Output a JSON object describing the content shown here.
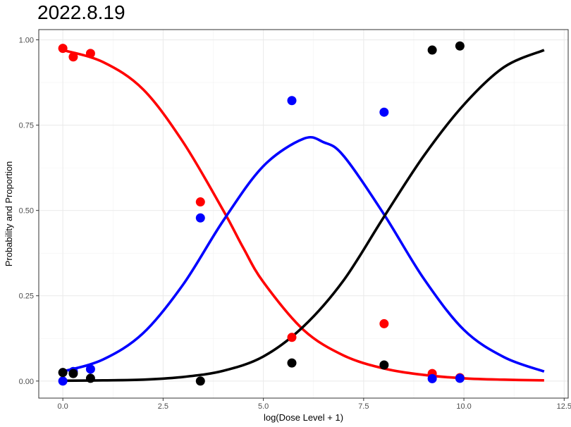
{
  "chart_data": {
    "type": "scatter",
    "title": "2022.8.19",
    "xlabel": "log(Dose Level + 1)",
    "ylabel": "Probability and Proportion",
    "xlim": [
      -0.6,
      12.6
    ],
    "ylim": [
      -0.05,
      1.03
    ],
    "x_ticks": [
      0.0,
      2.5,
      5.0,
      7.5,
      10.0,
      12.5
    ],
    "x_tick_labels": [
      "0.0",
      "2.5",
      "5.0",
      "7.5",
      "10.0",
      "12.5"
    ],
    "y_ticks": [
      0.0,
      0.25,
      0.5,
      0.75,
      1.0
    ],
    "y_tick_labels": [
      "0.00",
      "0.25",
      "0.50",
      "0.75",
      "1.00"
    ],
    "grid": true,
    "legend": "none",
    "series": [
      {
        "color": "#ff0000",
        "points": [
          {
            "x": 0.0,
            "y": 0.975
          },
          {
            "x": 0.26,
            "y": 0.95
          },
          {
            "x": 0.69,
            "y": 0.96
          },
          {
            "x": 3.43,
            "y": 0.525
          },
          {
            "x": 5.71,
            "y": 0.128
          },
          {
            "x": 8.01,
            "y": 0.168
          },
          {
            "x": 9.21,
            "y": 0.022
          },
          {
            "x": 9.9,
            "y": 0.01
          }
        ],
        "curve": [
          {
            "x": 0.0,
            "y": 0.97
          },
          {
            "x": 1.0,
            "y": 0.935
          },
          {
            "x": 2.0,
            "y": 0.855
          },
          {
            "x": 3.0,
            "y": 0.7
          },
          {
            "x": 4.0,
            "y": 0.5
          },
          {
            "x": 4.5,
            "y": 0.39
          },
          {
            "x": 5.0,
            "y": 0.29
          },
          {
            "x": 6.0,
            "y": 0.15
          },
          {
            "x": 7.0,
            "y": 0.075
          },
          {
            "x": 8.0,
            "y": 0.037
          },
          {
            "x": 9.0,
            "y": 0.018
          },
          {
            "x": 10.0,
            "y": 0.008
          },
          {
            "x": 11.0,
            "y": 0.004
          },
          {
            "x": 12.0,
            "y": 0.002
          }
        ]
      },
      {
        "color": "#0000ff",
        "points": [
          {
            "x": 0.0,
            "y": 0.0
          },
          {
            "x": 0.26,
            "y": 0.028
          },
          {
            "x": 0.69,
            "y": 0.035
          },
          {
            "x": 3.43,
            "y": 0.478
          },
          {
            "x": 5.71,
            "y": 0.822
          },
          {
            "x": 8.01,
            "y": 0.788
          },
          {
            "x": 9.21,
            "y": 0.007
          },
          {
            "x": 9.9,
            "y": 0.008
          }
        ],
        "curve": [
          {
            "x": 0.0,
            "y": 0.028
          },
          {
            "x": 1.0,
            "y": 0.063
          },
          {
            "x": 2.0,
            "y": 0.14
          },
          {
            "x": 3.0,
            "y": 0.283
          },
          {
            "x": 4.0,
            "y": 0.47
          },
          {
            "x": 5.0,
            "y": 0.63
          },
          {
            "x": 6.0,
            "y": 0.71
          },
          {
            "x": 6.5,
            "y": 0.7
          },
          {
            "x": 7.0,
            "y": 0.66
          },
          {
            "x": 8.0,
            "y": 0.49
          },
          {
            "x": 9.0,
            "y": 0.3
          },
          {
            "x": 10.0,
            "y": 0.15
          },
          {
            "x": 11.0,
            "y": 0.07
          },
          {
            "x": 12.0,
            "y": 0.028
          }
        ]
      },
      {
        "color": "#000000",
        "points": [
          {
            "x": 0.0,
            "y": 0.025
          },
          {
            "x": 0.26,
            "y": 0.022
          },
          {
            "x": 0.69,
            "y": 0.008
          },
          {
            "x": 3.43,
            "y": 0.0
          },
          {
            "x": 5.71,
            "y": 0.053
          },
          {
            "x": 8.01,
            "y": 0.047
          },
          {
            "x": 9.21,
            "y": 0.97
          },
          {
            "x": 9.9,
            "y": 0.982
          }
        ],
        "curve": [
          {
            "x": 0.0,
            "y": 0.001
          },
          {
            "x": 1.0,
            "y": 0.002
          },
          {
            "x": 2.0,
            "y": 0.004
          },
          {
            "x": 3.0,
            "y": 0.012
          },
          {
            "x": 4.0,
            "y": 0.03
          },
          {
            "x": 5.0,
            "y": 0.072
          },
          {
            "x": 6.0,
            "y": 0.16
          },
          {
            "x": 7.0,
            "y": 0.295
          },
          {
            "x": 8.0,
            "y": 0.48
          },
          {
            "x": 9.0,
            "y": 0.66
          },
          {
            "x": 10.0,
            "y": 0.81
          },
          {
            "x": 11.0,
            "y": 0.92
          },
          {
            "x": 12.0,
            "y": 0.97
          }
        ]
      }
    ]
  }
}
